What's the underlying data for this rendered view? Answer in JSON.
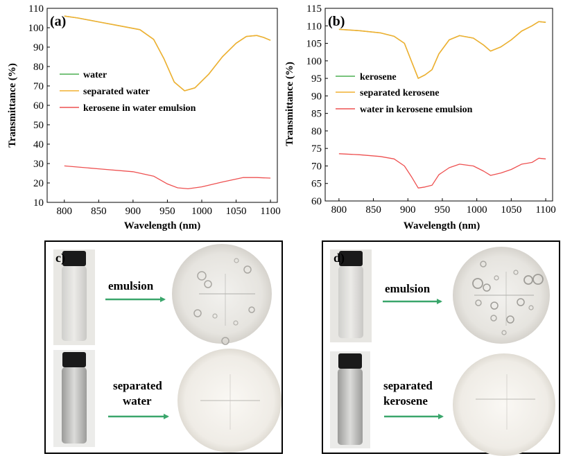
{
  "chart_data": [
    {
      "panel": "(a)",
      "type": "line",
      "xlabel": "Wavelength (nm)",
      "ylabel": "Transmittance (%)",
      "xlim": [
        775,
        1110
      ],
      "ylim": [
        10,
        110
      ],
      "xticks": [
        "800",
        "850",
        "900",
        "950",
        "1000",
        "1050",
        "1100"
      ],
      "yticks": [
        "10",
        "20",
        "30",
        "40",
        "50",
        "60",
        "70",
        "80",
        "90",
        "100",
        "110"
      ],
      "legend_position": "center-left",
      "series": [
        {
          "name": "water",
          "color": "#4caf50",
          "x": [
            800,
            820,
            850,
            880,
            910,
            930,
            945,
            960,
            975,
            990,
            1010,
            1030,
            1050,
            1065,
            1080,
            1090,
            1100
          ],
          "y": [
            106,
            105,
            103,
            101,
            99,
            94,
            84,
            72,
            67.5,
            69,
            76,
            85,
            92,
            95.5,
            96,
            95,
            93.5
          ]
        },
        {
          "name": "separated water",
          "color": "#f0b030",
          "x": [
            800,
            820,
            850,
            880,
            910,
            930,
            945,
            960,
            975,
            990,
            1010,
            1030,
            1050,
            1065,
            1080,
            1090,
            1100
          ],
          "y": [
            106,
            105,
            103,
            101,
            99,
            94,
            84,
            72,
            67.5,
            69,
            76,
            85,
            92,
            95.5,
            96,
            95,
            93.5
          ]
        },
        {
          "name": "kerosene in water emulsion",
          "color": "#ee5050",
          "x": [
            800,
            850,
            900,
            930,
            950,
            965,
            980,
            1000,
            1030,
            1060,
            1080,
            1100
          ],
          "y": [
            28.8,
            27.3,
            25.8,
            23.5,
            19.5,
            17.5,
            17,
            18,
            20.5,
            22.8,
            22.8,
            22.5
          ]
        }
      ]
    },
    {
      "panel": "(b)",
      "type": "line",
      "xlabel": "Wavelength (nm)",
      "ylabel": "Transmittance (%)",
      "xlim": [
        780,
        1110
      ],
      "ylim": [
        60,
        115
      ],
      "xticks": [
        "800",
        "850",
        "900",
        "950",
        "1000",
        "1050",
        "1100"
      ],
      "yticks": [
        "60",
        "65",
        "70",
        "75",
        "80",
        "85",
        "90",
        "95",
        "100",
        "105",
        "110",
        "115"
      ],
      "legend_position": "center-left",
      "series": [
        {
          "name": "kerosene",
          "color": "#4caf50",
          "x": [
            800,
            830,
            860,
            880,
            895,
            905,
            915,
            925,
            935,
            945,
            960,
            975,
            995,
            1010,
            1020,
            1035,
            1050,
            1065,
            1080,
            1090,
            1100
          ],
          "y": [
            109,
            108.6,
            108,
            107,
            105,
            100,
            95,
            96,
            97.5,
            102,
            106,
            107.2,
            106.5,
            104.5,
            102.8,
            104,
            106,
            108.5,
            110,
            111.2,
            111
          ]
        },
        {
          "name": "separated kerosene",
          "color": "#f0b030",
          "x": [
            800,
            830,
            860,
            880,
            895,
            905,
            915,
            925,
            935,
            945,
            960,
            975,
            995,
            1010,
            1020,
            1035,
            1050,
            1065,
            1080,
            1090,
            1100
          ],
          "y": [
            109,
            108.6,
            108,
            107,
            105,
            100,
            95,
            96,
            97.5,
            102,
            106,
            107.2,
            106.5,
            104.5,
            102.8,
            104,
            106,
            108.5,
            110,
            111.2,
            111
          ]
        },
        {
          "name": "water in kerosene  emulsion",
          "color": "#ee5050",
          "x": [
            800,
            830,
            860,
            880,
            895,
            905,
            915,
            925,
            935,
            945,
            960,
            975,
            995,
            1010,
            1020,
            1035,
            1050,
            1065,
            1080,
            1090,
            1100
          ],
          "y": [
            73.5,
            73.2,
            72.7,
            72,
            70,
            67,
            63.7,
            64,
            64.5,
            67.5,
            69.5,
            70.5,
            70,
            68.5,
            67.3,
            68,
            69,
            70.5,
            71,
            72.2,
            72
          ]
        }
      ]
    }
  ],
  "photos": {
    "c": {
      "label": "c)",
      "top_caption": "emulsion",
      "bottom_caption_line1": "separated",
      "bottom_caption_line2": "water"
    },
    "d": {
      "label": "d)",
      "top_caption": "emulsion",
      "bottom_caption_line1": "separated",
      "bottom_caption_line2": "kerosene"
    }
  },
  "colors": {
    "arrow": "#3aa66b",
    "water": "#4caf50",
    "separated": "#f0b030",
    "emulsion": "#ee5050"
  }
}
